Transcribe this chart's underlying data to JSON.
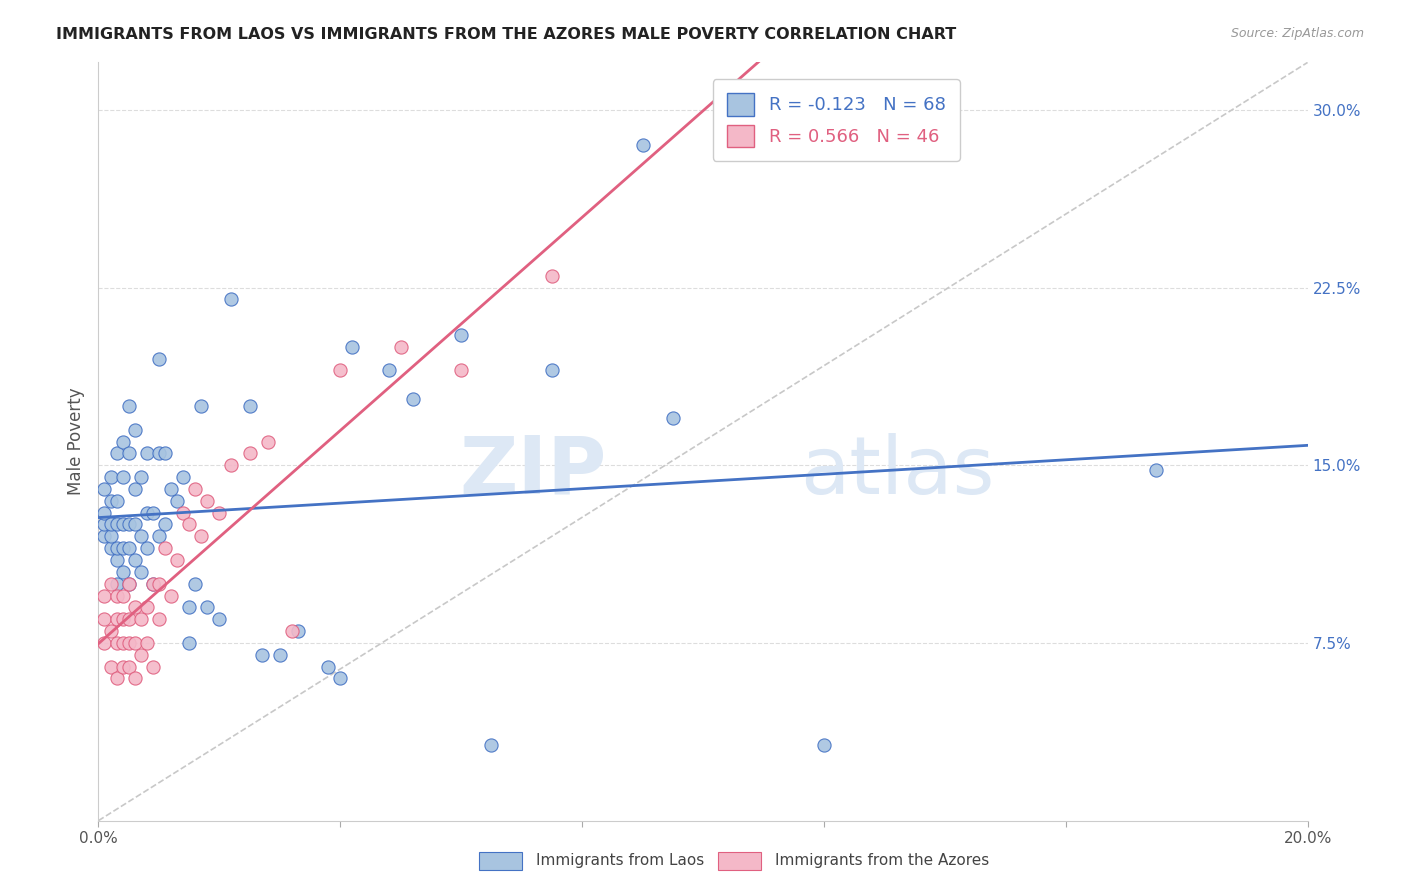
{
  "title": "IMMIGRANTS FROM LAOS VS IMMIGRANTS FROM THE AZORES MALE POVERTY CORRELATION CHART",
  "source": "Source: ZipAtlas.com",
  "ylabel": "Male Poverty",
  "x_min": 0.0,
  "x_max": 0.2,
  "y_min": 0.0,
  "y_max": 0.32,
  "x_ticks": [
    0.0,
    0.04,
    0.08,
    0.12,
    0.16,
    0.2
  ],
  "x_tick_labels": [
    "0.0%",
    "",
    "",
    "",
    "",
    "20.0%"
  ],
  "y_ticks": [
    0.075,
    0.15,
    0.225,
    0.3
  ],
  "y_tick_labels": [
    "7.5%",
    "15.0%",
    "22.5%",
    "30.0%"
  ],
  "laos_color": "#a8c4e0",
  "azores_color": "#f4b8c8",
  "laos_line_color": "#4472c4",
  "azores_line_color": "#e06080",
  "diagonal_color": "#c8c8c8",
  "R_laos": -0.123,
  "N_laos": 68,
  "R_azores": 0.566,
  "N_azores": 46,
  "watermark_left": "ZIP",
  "watermark_right": "atlas",
  "laos_label": "Immigrants from Laos",
  "azores_label": "Immigrants from the Azores",
  "laos_x": [
    0.001,
    0.001,
    0.001,
    0.001,
    0.002,
    0.002,
    0.002,
    0.002,
    0.002,
    0.003,
    0.003,
    0.003,
    0.003,
    0.003,
    0.003,
    0.004,
    0.004,
    0.004,
    0.004,
    0.004,
    0.005,
    0.005,
    0.005,
    0.005,
    0.005,
    0.006,
    0.006,
    0.006,
    0.006,
    0.007,
    0.007,
    0.007,
    0.008,
    0.008,
    0.008,
    0.009,
    0.009,
    0.01,
    0.01,
    0.01,
    0.011,
    0.011,
    0.012,
    0.013,
    0.014,
    0.015,
    0.015,
    0.016,
    0.017,
    0.018,
    0.02,
    0.022,
    0.025,
    0.027,
    0.03,
    0.033,
    0.038,
    0.04,
    0.042,
    0.048,
    0.052,
    0.06,
    0.065,
    0.075,
    0.09,
    0.095,
    0.12,
    0.175
  ],
  "laos_y": [
    0.12,
    0.125,
    0.13,
    0.14,
    0.115,
    0.12,
    0.125,
    0.135,
    0.145,
    0.1,
    0.11,
    0.115,
    0.125,
    0.135,
    0.155,
    0.105,
    0.115,
    0.125,
    0.145,
    0.16,
    0.1,
    0.115,
    0.125,
    0.155,
    0.175,
    0.11,
    0.125,
    0.14,
    0.165,
    0.105,
    0.12,
    0.145,
    0.115,
    0.13,
    0.155,
    0.1,
    0.13,
    0.12,
    0.155,
    0.195,
    0.125,
    0.155,
    0.14,
    0.135,
    0.145,
    0.075,
    0.09,
    0.1,
    0.175,
    0.09,
    0.085,
    0.22,
    0.175,
    0.07,
    0.07,
    0.08,
    0.065,
    0.06,
    0.2,
    0.19,
    0.178,
    0.205,
    0.032,
    0.19,
    0.285,
    0.17,
    0.032,
    0.148
  ],
  "azores_x": [
    0.001,
    0.001,
    0.001,
    0.002,
    0.002,
    0.002,
    0.003,
    0.003,
    0.003,
    0.003,
    0.004,
    0.004,
    0.004,
    0.004,
    0.005,
    0.005,
    0.005,
    0.005,
    0.006,
    0.006,
    0.006,
    0.007,
    0.007,
    0.008,
    0.008,
    0.009,
    0.009,
    0.01,
    0.01,
    0.011,
    0.012,
    0.013,
    0.014,
    0.015,
    0.016,
    0.017,
    0.018,
    0.02,
    0.022,
    0.025,
    0.028,
    0.032,
    0.04,
    0.05,
    0.06,
    0.075
  ],
  "azores_y": [
    0.075,
    0.085,
    0.095,
    0.065,
    0.08,
    0.1,
    0.06,
    0.075,
    0.085,
    0.095,
    0.065,
    0.075,
    0.085,
    0.095,
    0.065,
    0.075,
    0.085,
    0.1,
    0.06,
    0.075,
    0.09,
    0.07,
    0.085,
    0.075,
    0.09,
    0.065,
    0.1,
    0.085,
    0.1,
    0.115,
    0.095,
    0.11,
    0.13,
    0.125,
    0.14,
    0.12,
    0.135,
    0.13,
    0.15,
    0.155,
    0.16,
    0.08,
    0.19,
    0.2,
    0.19,
    0.23
  ]
}
